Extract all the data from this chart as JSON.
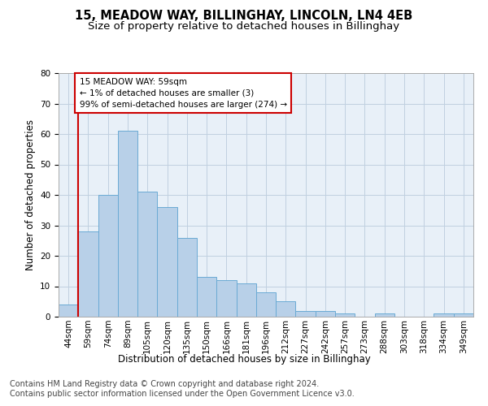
{
  "title1": "15, MEADOW WAY, BILLINGHAY, LINCOLN, LN4 4EB",
  "title2": "Size of property relative to detached houses in Billinghay",
  "xlabel": "Distribution of detached houses by size in Billinghay",
  "ylabel": "Number of detached properties",
  "categories": [
    "44sqm",
    "59sqm",
    "74sqm",
    "89sqm",
    "105sqm",
    "120sqm",
    "135sqm",
    "150sqm",
    "166sqm",
    "181sqm",
    "196sqm",
    "212sqm",
    "227sqm",
    "242sqm",
    "257sqm",
    "273sqm",
    "288sqm",
    "303sqm",
    "318sqm",
    "334sqm",
    "349sqm"
  ],
  "values": [
    4,
    28,
    40,
    61,
    41,
    36,
    26,
    13,
    12,
    11,
    8,
    5,
    2,
    2,
    1,
    0,
    1,
    0,
    0,
    1,
    1
  ],
  "bar_color": "#b8d0e8",
  "bar_edge_color": "#6aaad4",
  "highlight_bar_index": 1,
  "highlight_line_color": "#cc0000",
  "ylim": [
    0,
    80
  ],
  "yticks": [
    0,
    10,
    20,
    30,
    40,
    50,
    60,
    70,
    80
  ],
  "annotation_text": "15 MEADOW WAY: 59sqm\n← 1% of detached houses are smaller (3)\n99% of semi-detached houses are larger (274) →",
  "annotation_box_color": "#ffffff",
  "annotation_box_edge": "#cc0000",
  "footer1": "Contains HM Land Registry data © Crown copyright and database right 2024.",
  "footer2": "Contains public sector information licensed under the Open Government Licence v3.0.",
  "bg_color": "#ffffff",
  "plot_bg_color": "#e8f0f8",
  "grid_color": "#c0d0e0",
  "title1_fontsize": 10.5,
  "title2_fontsize": 9.5,
  "axis_label_fontsize": 8.5,
  "tick_fontsize": 7.5,
  "annotation_fontsize": 7.5,
  "footer_fontsize": 7
}
